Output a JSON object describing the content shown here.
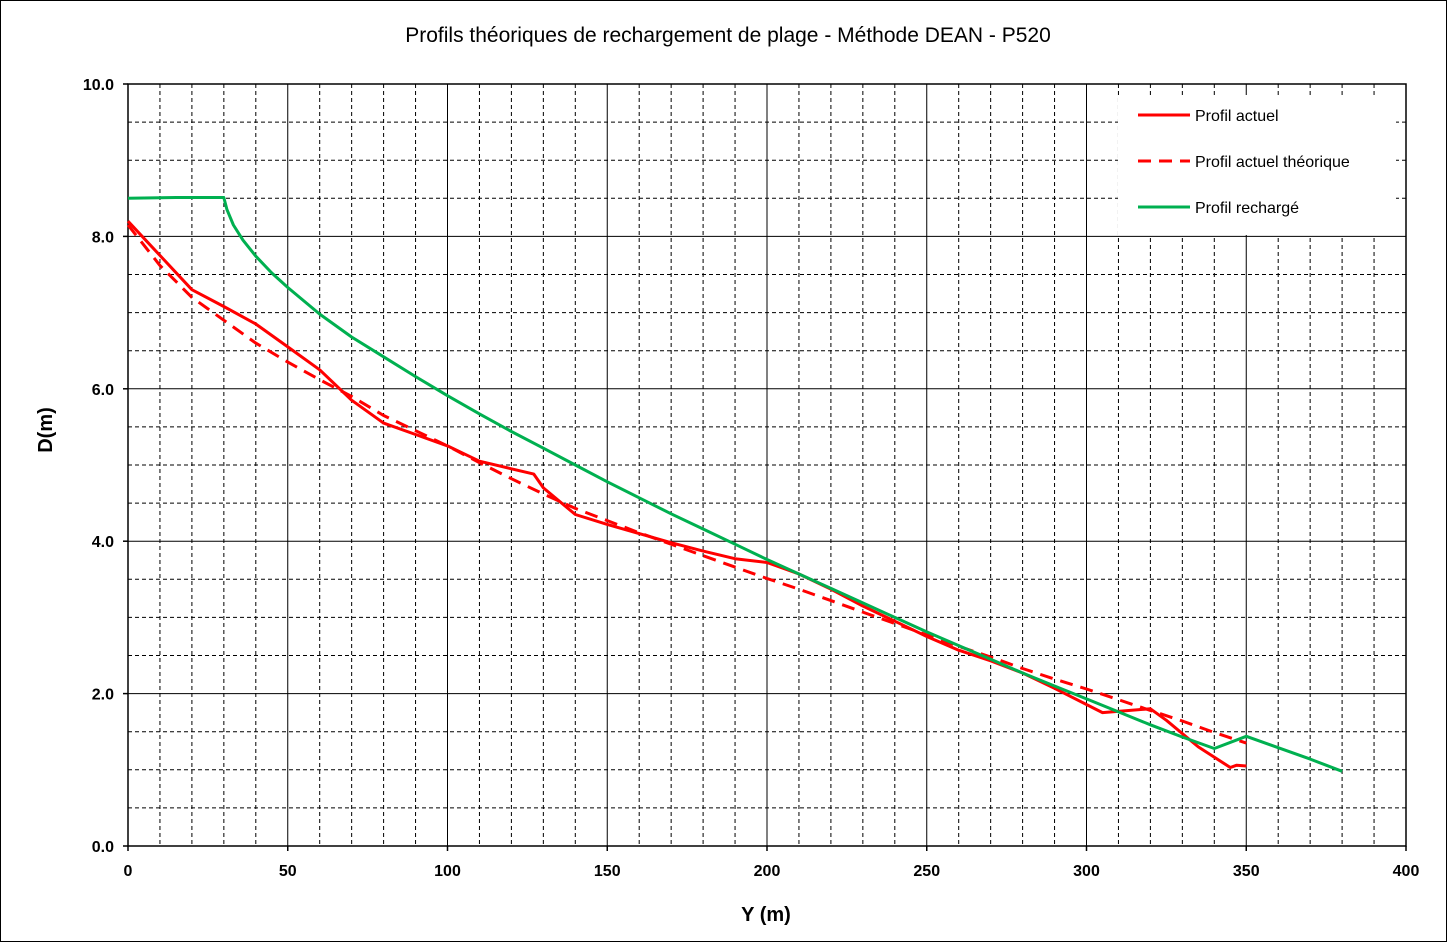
{
  "chart_data": {
    "type": "line",
    "title": "Profils théoriques de rechargement de plage - Méthode DEAN - P520",
    "xlabel": "Y  (m)",
    "ylabel": "D(m)",
    "xlim": [
      0,
      400
    ],
    "ylim": [
      0,
      10
    ],
    "x_ticks": [
      "0",
      "50",
      "100",
      "150",
      "200",
      "250",
      "300",
      "350",
      "400"
    ],
    "y_ticks": [
      "0.0",
      "2.0",
      "4.0",
      "6.0",
      "8.0",
      "10.0"
    ],
    "grid": {
      "major": true,
      "minor": true,
      "minor_style": "dashed"
    },
    "legend_position": "top-right",
    "series": [
      {
        "name": "Profil actuel",
        "color": "#ff0000",
        "style": "solid",
        "points": [
          [
            0,
            8.2
          ],
          [
            10,
            7.75
          ],
          [
            20,
            7.3
          ],
          [
            30,
            7.08
          ],
          [
            40,
            6.85
          ],
          [
            50,
            6.55
          ],
          [
            60,
            6.25
          ],
          [
            70,
            5.85
          ],
          [
            80,
            5.55
          ],
          [
            90,
            5.4
          ],
          [
            100,
            5.25
          ],
          [
            110,
            5.05
          ],
          [
            120,
            4.95
          ],
          [
            127,
            4.88
          ],
          [
            130,
            4.7
          ],
          [
            140,
            4.35
          ],
          [
            150,
            4.22
          ],
          [
            160,
            4.1
          ],
          [
            170,
            3.98
          ],
          [
            180,
            3.87
          ],
          [
            190,
            3.77
          ],
          [
            200,
            3.72
          ],
          [
            210,
            3.57
          ],
          [
            220,
            3.37
          ],
          [
            230,
            3.15
          ],
          [
            240,
            2.95
          ],
          [
            250,
            2.75
          ],
          [
            260,
            2.57
          ],
          [
            270,
            2.43
          ],
          [
            280,
            2.27
          ],
          [
            290,
            2.07
          ],
          [
            305,
            1.75
          ],
          [
            320,
            1.8
          ],
          [
            325,
            1.65
          ],
          [
            335,
            1.3
          ],
          [
            345,
            1.03
          ],
          [
            347,
            1.06
          ],
          [
            350,
            1.05
          ]
        ]
      },
      {
        "name": "Profil actuel théorique",
        "color": "#ff0000",
        "style": "dashed",
        "points": [
          [
            0,
            8.15
          ],
          [
            10,
            7.62
          ],
          [
            20,
            7.2
          ],
          [
            30,
            6.9
          ],
          [
            40,
            6.6
          ],
          [
            50,
            6.35
          ],
          [
            60,
            6.12
          ],
          [
            70,
            5.9
          ],
          [
            80,
            5.65
          ],
          [
            90,
            5.45
          ],
          [
            100,
            5.25
          ],
          [
            110,
            5.03
          ],
          [
            120,
            4.82
          ],
          [
            130,
            4.62
          ],
          [
            140,
            4.43
          ],
          [
            150,
            4.27
          ],
          [
            160,
            4.11
          ],
          [
            170,
            3.96
          ],
          [
            180,
            3.81
          ],
          [
            190,
            3.66
          ],
          [
            200,
            3.51
          ],
          [
            210,
            3.37
          ],
          [
            220,
            3.22
          ],
          [
            230,
            3.07
          ],
          [
            240,
            2.92
          ],
          [
            250,
            2.77
          ],
          [
            260,
            2.62
          ],
          [
            270,
            2.48
          ],
          [
            280,
            2.33
          ],
          [
            290,
            2.19
          ],
          [
            300,
            2.06
          ],
          [
            310,
            1.92
          ],
          [
            320,
            1.78
          ],
          [
            330,
            1.64
          ],
          [
            340,
            1.49
          ],
          [
            350,
            1.35
          ]
        ]
      },
      {
        "name": "Profil rechargé",
        "color": "#00b050",
        "style": "solid",
        "points": [
          [
            0,
            8.5
          ],
          [
            15,
            8.51
          ],
          [
            30,
            8.51
          ],
          [
            31,
            8.35
          ],
          [
            33,
            8.15
          ],
          [
            36,
            7.95
          ],
          [
            40,
            7.74
          ],
          [
            45,
            7.52
          ],
          [
            50,
            7.33
          ],
          [
            60,
            6.98
          ],
          [
            70,
            6.68
          ],
          [
            80,
            6.42
          ],
          [
            90,
            6.16
          ],
          [
            100,
            5.91
          ],
          [
            110,
            5.67
          ],
          [
            120,
            5.44
          ],
          [
            130,
            5.22
          ],
          [
            140,
            5.0
          ],
          [
            150,
            4.78
          ],
          [
            160,
            4.57
          ],
          [
            170,
            4.36
          ],
          [
            180,
            4.16
          ],
          [
            190,
            3.96
          ],
          [
            200,
            3.76
          ],
          [
            210,
            3.57
          ],
          [
            220,
            3.38
          ],
          [
            230,
            3.19
          ],
          [
            240,
            3.0
          ],
          [
            250,
            2.81
          ],
          [
            260,
            2.63
          ],
          [
            270,
            2.45
          ],
          [
            280,
            2.27
          ],
          [
            290,
            2.1
          ],
          [
            300,
            1.93
          ],
          [
            310,
            1.76
          ],
          [
            320,
            1.59
          ],
          [
            330,
            1.43
          ],
          [
            340,
            1.28
          ],
          [
            350,
            1.44
          ],
          [
            360,
            1.29
          ],
          [
            370,
            1.14
          ],
          [
            380,
            0.98
          ]
        ]
      }
    ]
  }
}
